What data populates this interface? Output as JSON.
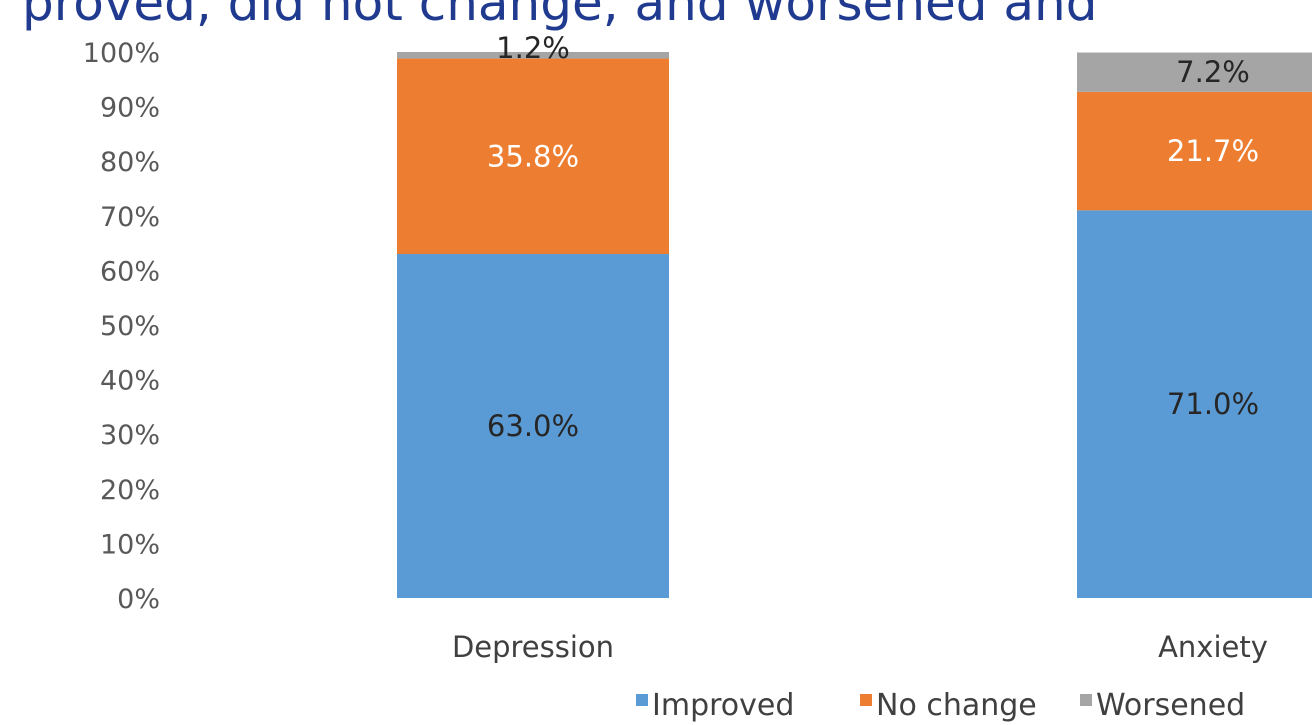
{
  "cut_title": "proved, did not change, and worsened and",
  "chart_data": {
    "type": "bar",
    "stacked": true,
    "percent": true,
    "categories": [
      "Depression",
      "Anxiety"
    ],
    "series": [
      {
        "name": "Improved",
        "values": [
          63.0,
          71.0
        ],
        "labels": [
          "63.0%",
          "71.0%"
        ],
        "color": "#5b9bd5",
        "label_color": "#262626"
      },
      {
        "name": "No change",
        "values": [
          35.8,
          21.7
        ],
        "labels": [
          "35.8%",
          "21.7%"
        ],
        "color": "#ed7d31",
        "label_color": "#ffffff"
      },
      {
        "name": "Worsened",
        "values": [
          1.2,
          7.2
        ],
        "labels": [
          "1.2%",
          "7.2%"
        ],
        "color": "#a5a5a5",
        "label_color": "#262626"
      }
    ],
    "ylim": [
      0,
      100
    ],
    "yticks": [
      "0%",
      "10%",
      "20%",
      "30%",
      "40%",
      "50%",
      "60%",
      "70%",
      "80%",
      "90%",
      "100%"
    ],
    "legend_position": "bottom",
    "grid": false
  }
}
